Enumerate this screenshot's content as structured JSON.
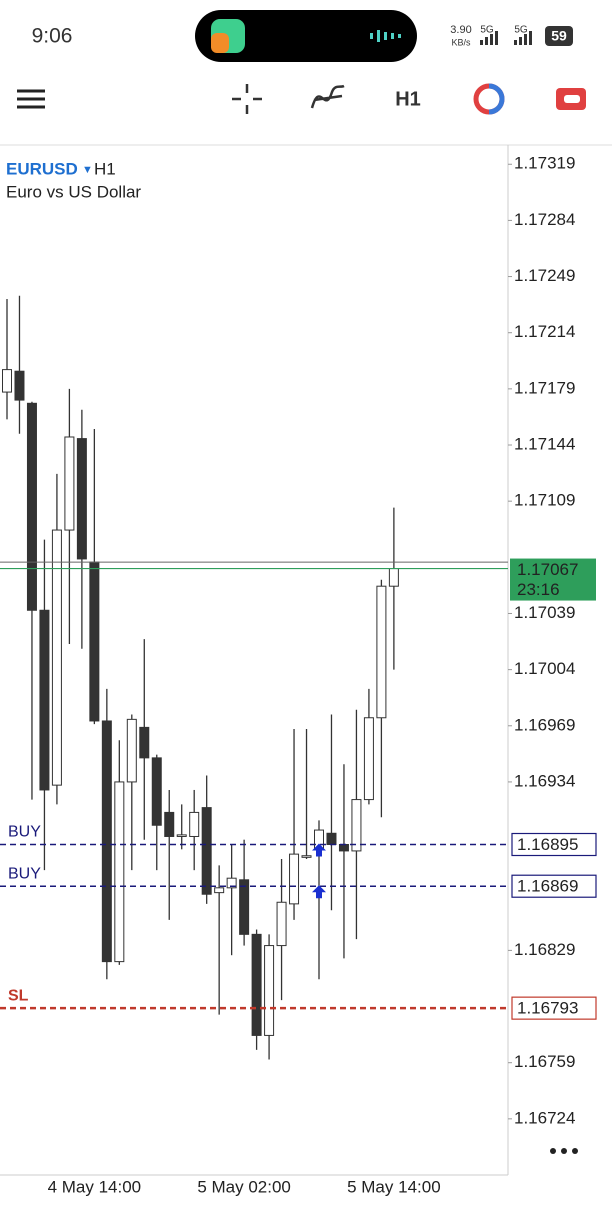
{
  "status_bar": {
    "time": "9:06",
    "net_speed": "3.90",
    "net_unit": "KB/s",
    "signal_1": "5G",
    "signal_2": "5G",
    "battery": "59"
  },
  "toolbar": {
    "timeframe": "H1"
  },
  "chart_data": {
    "type": "candlestick",
    "symbol": "EURUSD",
    "timeframe": "H1",
    "description": "Euro vs US Dollar",
    "categories": [
      null,
      null,
      null,
      null,
      null,
      null,
      null,
      "4 May 14:00",
      null,
      null,
      null,
      null,
      null,
      null,
      null,
      null,
      null,
      null,
      null,
      "5 May 02:00",
      null,
      null,
      null,
      null,
      null,
      null,
      null,
      null,
      null,
      null,
      null,
      "5 May 14:00"
    ],
    "open": [
      1.17177,
      1.1719,
      1.1717,
      1.17041,
      1.16932,
      1.17091,
      1.17148,
      1.17071,
      1.16972,
      1.16822,
      1.16934,
      1.16968,
      1.16949,
      1.16915,
      1.169,
      1.169,
      1.16918,
      1.16865,
      1.16868,
      1.16873,
      1.16839,
      1.16776,
      1.16832,
      1.16858,
      1.16887,
      1.16892,
      1.16902,
      1.16895,
      1.16891,
      1.16923,
      1.16974,
      1.17056
    ],
    "high": [
      1.17235,
      1.17237,
      1.17171,
      1.17085,
      1.17126,
      1.17179,
      1.17166,
      1.17154,
      1.16992,
      1.1696,
      1.16976,
      1.17023,
      1.16951,
      1.16929,
      1.1692,
      1.16929,
      1.16938,
      1.16882,
      1.16895,
      1.16898,
      1.16842,
      1.16839,
      1.16886,
      1.16967,
      1.16967,
      1.1691,
      1.16976,
      1.16945,
      1.16979,
      1.16992,
      1.1706,
      1.17105
    ],
    "low": [
      1.1716,
      1.17151,
      1.16923,
      1.16879,
      1.1692,
      1.1702,
      1.17017,
      1.1697,
      1.16811,
      1.1682,
      1.16879,
      1.16898,
      1.16879,
      1.16848,
      1.16892,
      1.16879,
      1.16858,
      1.16789,
      1.16826,
      1.16832,
      1.16767,
      1.16761,
      1.16798,
      1.16848,
      1.16886,
      1.16811,
      1.16854,
      1.16824,
      1.16836,
      1.1692,
      1.16912,
      1.17004
    ],
    "close": [
      1.17191,
      1.17172,
      1.17041,
      1.16929,
      1.17091,
      1.17149,
      1.17073,
      1.16972,
      1.16822,
      1.16934,
      1.16973,
      1.16949,
      1.16907,
      1.169,
      1.16901,
      1.16915,
      1.16864,
      1.16868,
      1.16874,
      1.16839,
      1.16776,
      1.16832,
      1.16859,
      1.16889,
      1.16888,
      1.16904,
      1.16895,
      1.16891,
      1.16923,
      1.16974,
      1.17056,
      1.17067
    ],
    "up_color": "#ffffff",
    "down_color": "#333333",
    "ylim": [
      1.16689,
      1.17331
    ],
    "yticks": [
      1.17319,
      1.17284,
      1.17249,
      1.17214,
      1.17179,
      1.17144,
      1.17109,
      1.17039,
      1.17004,
      1.16969,
      1.16934,
      1.16829,
      1.16759,
      1.16724
    ],
    "order_lines": [
      {
        "label": "BUY",
        "value": 1.16895,
        "color": "#1a1a7a"
      },
      {
        "label": "BUY",
        "value": 1.16869,
        "color": "#1a1a7a"
      },
      {
        "label": "SL",
        "value": 1.16793,
        "color": "#c0392b"
      }
    ],
    "ask_price": 1.17071,
    "current_price": 1.17067,
    "current_color": "#2e9e5b",
    "countdown": "23:16"
  }
}
